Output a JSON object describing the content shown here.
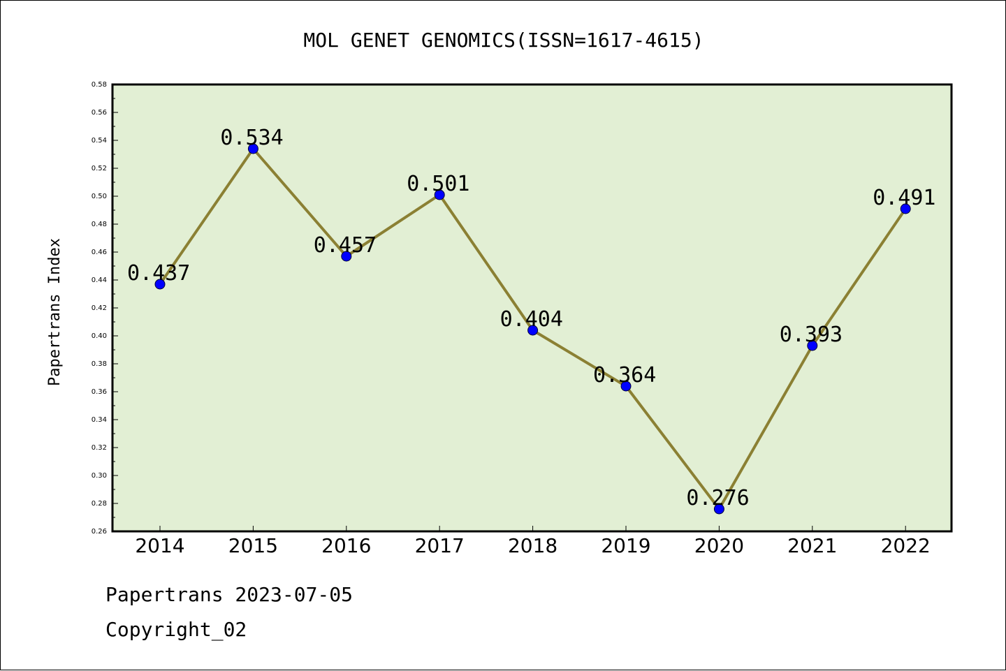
{
  "chart_data": {
    "type": "line",
    "title": "MOL GENET GENOMICS(ISSN=1617-4615)",
    "xlabel": "",
    "ylabel": "Papertrans Index",
    "categories": [
      "2014",
      "2015",
      "2016",
      "2017",
      "2018",
      "2019",
      "2020",
      "2021",
      "2022"
    ],
    "series": [
      {
        "values": [
          0.437,
          0.534,
          0.457,
          0.501,
          0.404,
          0.364,
          0.276,
          0.393,
          0.491
        ],
        "labels": [
          "0.437",
          "0.534",
          "0.457",
          "0.501",
          "0.404",
          "0.364",
          "0.276",
          "0.393",
          "0.491"
        ]
      }
    ],
    "ylim": [
      0.26,
      0.58
    ],
    "yticks": [
      "0.26",
      "0.28",
      "0.30",
      "0.32",
      "0.34",
      "0.36",
      "0.38",
      "0.40",
      "0.42",
      "0.44",
      "0.46",
      "0.48",
      "0.50",
      "0.52",
      "0.54",
      "0.56",
      "0.58"
    ],
    "grid": false,
    "colors": {
      "plot_background": "#e2efd4",
      "line": "#8b8033",
      "marker": "#0000ff"
    }
  },
  "footer": {
    "line1": "Papertrans 2023-07-05",
    "line2": "Copyright_02"
  }
}
